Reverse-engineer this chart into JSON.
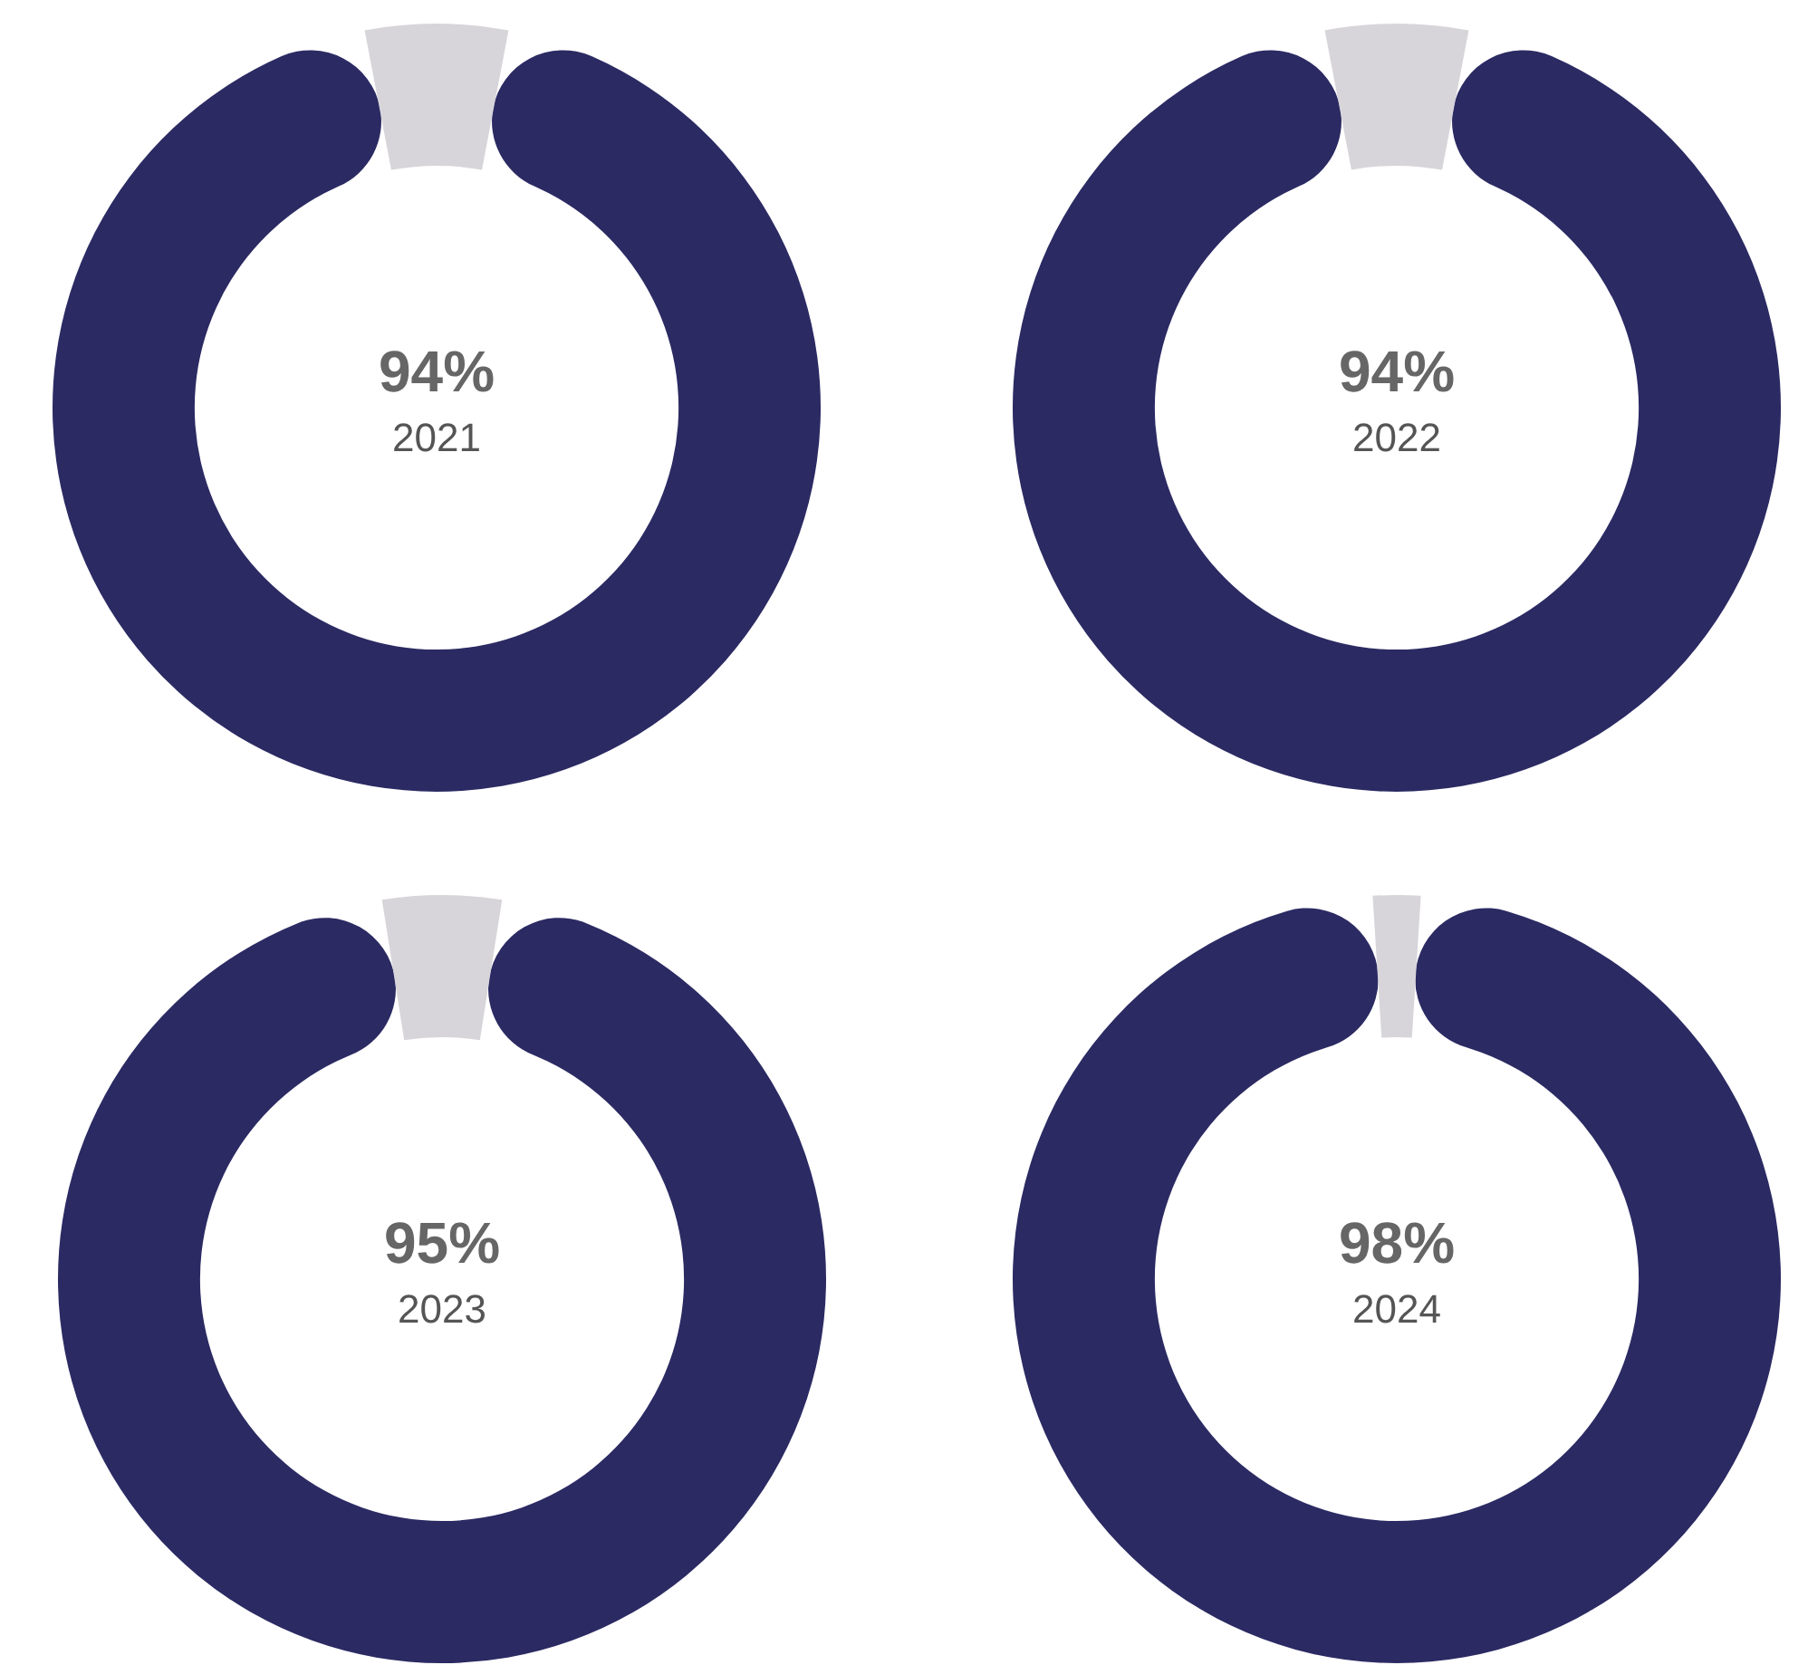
{
  "chart_data": [
    {
      "type": "donut",
      "title": "2021",
      "categories": [
        null,
        null
      ],
      "values": [
        94,
        6
      ],
      "colors": [
        "#2b2a63",
        "#d7d5da"
      ],
      "annotations": [
        "94%"
      ]
    },
    {
      "type": "donut",
      "title": "2022",
      "categories": [
        null,
        null
      ],
      "values": [
        94,
        6
      ],
      "colors": [
        "#2b2a63",
        "#d7d5da"
      ],
      "annotations": [
        "94%"
      ]
    },
    {
      "type": "donut",
      "title": "2023",
      "categories": [
        null,
        null
      ],
      "values": [
        95,
        5
      ],
      "colors": [
        "#2b2a63",
        "#d7d5da"
      ],
      "annotations": [
        "95%"
      ]
    },
    {
      "type": "donut",
      "title": "2024",
      "categories": [
        null,
        null
      ],
      "values": [
        98,
        2
      ],
      "colors": [
        "#2b2a63",
        "#d7d5da"
      ],
      "annotations": [
        "98%"
      ]
    }
  ]
}
